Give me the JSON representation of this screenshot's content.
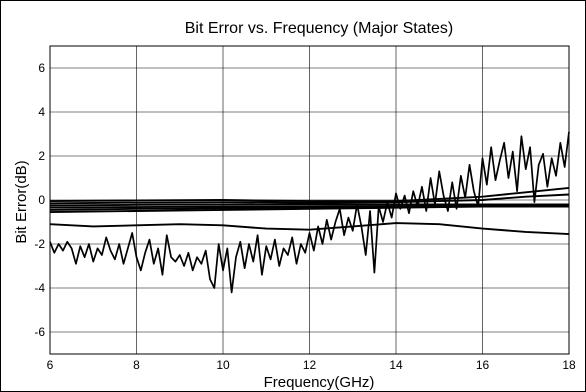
{
  "chart_data": {
    "type": "line",
    "title": "Bit Error vs. Frequency (Major States)",
    "xlabel": "Frequency(GHz)",
    "ylabel": "Bit Error(dB)",
    "xlim": [
      6,
      18
    ],
    "ylim": [
      -7,
      7
    ],
    "xticks": [
      "6",
      "8",
      "10",
      "12",
      "14",
      "16",
      "18"
    ],
    "yticks": [
      "-6",
      "-4",
      "-2",
      "0",
      "2",
      "4",
      "6"
    ],
    "grid": true,
    "legend": "none",
    "series": [
      {
        "values": [
          [
            6,
            -1.1
          ],
          [
            7,
            -1.2
          ],
          [
            8,
            -1.15
          ],
          [
            9,
            -1.1
          ],
          [
            10,
            -1.15
          ],
          [
            11,
            -1.3
          ],
          [
            12,
            -1.35
          ],
          [
            13,
            -1.2
          ],
          [
            14,
            -1.05
          ],
          [
            15,
            -1.1
          ],
          [
            16,
            -1.3
          ],
          [
            17,
            -1.45
          ],
          [
            18,
            -1.55
          ]
        ]
      },
      {
        "values": [
          [
            6,
            -0.05
          ],
          [
            8,
            -0.02
          ],
          [
            10,
            0.0
          ],
          [
            12,
            -0.05
          ],
          [
            14,
            -0.05
          ],
          [
            15,
            0.05
          ],
          [
            16,
            0.15
          ],
          [
            17,
            0.35
          ],
          [
            18,
            0.55
          ]
        ]
      },
      {
        "values": [
          [
            6,
            -0.15
          ],
          [
            8,
            -0.12
          ],
          [
            10,
            -0.1
          ],
          [
            12,
            -0.12
          ],
          [
            14,
            -0.1
          ],
          [
            15,
            -0.05
          ],
          [
            16,
            0.0
          ],
          [
            17,
            0.15
          ],
          [
            18,
            0.25
          ]
        ]
      },
      {
        "values": [
          [
            6,
            -0.25
          ],
          [
            8,
            -0.22
          ],
          [
            10,
            -0.2
          ],
          [
            12,
            -0.2
          ],
          [
            14,
            -0.2
          ],
          [
            16,
            -0.2
          ],
          [
            18,
            -0.2
          ]
        ]
      },
      {
        "values": [
          [
            6,
            -0.35
          ],
          [
            8,
            -0.32
          ],
          [
            10,
            -0.3
          ],
          [
            12,
            -0.3
          ],
          [
            14,
            -0.28
          ],
          [
            16,
            -0.25
          ],
          [
            18,
            -0.2
          ]
        ]
      },
      {
        "values": [
          [
            6,
            -0.45
          ],
          [
            8,
            -0.4
          ],
          [
            10,
            -0.38
          ],
          [
            12,
            -0.35
          ],
          [
            14,
            -0.3
          ],
          [
            16,
            -0.3
          ],
          [
            18,
            -0.25
          ]
        ]
      },
      {
        "values": [
          [
            6,
            -0.55
          ],
          [
            8,
            -0.5
          ],
          [
            10,
            -0.45
          ],
          [
            12,
            -0.4
          ],
          [
            14,
            -0.35
          ],
          [
            16,
            -0.3
          ],
          [
            18,
            -0.3
          ]
        ]
      },
      {
        "values": [
          [
            6.0,
            -1.9
          ],
          [
            6.1,
            -2.4
          ],
          [
            6.2,
            -2.0
          ],
          [
            6.3,
            -2.3
          ],
          [
            6.4,
            -1.9
          ],
          [
            6.5,
            -2.2
          ],
          [
            6.6,
            -2.9
          ],
          [
            6.7,
            -2.1
          ],
          [
            6.8,
            -2.6
          ],
          [
            6.9,
            -2.0
          ],
          [
            7.0,
            -2.8
          ],
          [
            7.1,
            -2.2
          ],
          [
            7.2,
            -2.5
          ],
          [
            7.3,
            -1.7
          ],
          [
            7.4,
            -2.3
          ],
          [
            7.5,
            -2.7
          ],
          [
            7.6,
            -2.0
          ],
          [
            7.7,
            -2.9
          ],
          [
            7.8,
            -2.2
          ],
          [
            7.9,
            -1.5
          ],
          [
            8.0,
            -2.6
          ],
          [
            8.1,
            -3.2
          ],
          [
            8.2,
            -2.4
          ],
          [
            8.3,
            -1.8
          ],
          [
            8.4,
            -2.9
          ],
          [
            8.5,
            -2.2
          ],
          [
            8.6,
            -3.4
          ],
          [
            8.7,
            -1.6
          ],
          [
            8.8,
            -2.6
          ],
          [
            8.9,
            -2.8
          ],
          [
            9.0,
            -2.5
          ],
          [
            9.1,
            -3.0
          ],
          [
            9.2,
            -2.4
          ],
          [
            9.3,
            -3.2
          ],
          [
            9.4,
            -2.6
          ],
          [
            9.5,
            -2.9
          ],
          [
            9.6,
            -2.3
          ],
          [
            9.7,
            -3.6
          ],
          [
            9.8,
            -4.0
          ],
          [
            9.9,
            -2.0
          ],
          [
            10.0,
            -3.2
          ],
          [
            10.1,
            -2.2
          ],
          [
            10.2,
            -4.2
          ],
          [
            10.3,
            -2.6
          ],
          [
            10.4,
            -1.9
          ],
          [
            10.5,
            -3.1
          ],
          [
            10.6,
            -2.0
          ],
          [
            10.7,
            -2.8
          ],
          [
            10.8,
            -1.6
          ],
          [
            10.9,
            -3.4
          ],
          [
            11.0,
            -2.1
          ],
          [
            11.1,
            -2.7
          ],
          [
            11.2,
            -1.8
          ],
          [
            11.3,
            -3.0
          ],
          [
            11.4,
            -2.2
          ],
          [
            11.5,
            -2.5
          ],
          [
            11.6,
            -1.7
          ],
          [
            11.7,
            -2.9
          ],
          [
            11.8,
            -2.0
          ],
          [
            11.9,
            -2.4
          ],
          [
            12.0,
            -1.5
          ],
          [
            12.1,
            -2.3
          ],
          [
            12.2,
            -1.2
          ],
          [
            12.3,
            -2.0
          ],
          [
            12.4,
            -0.9
          ],
          [
            12.5,
            -1.8
          ],
          [
            12.6,
            -1.0
          ],
          [
            12.7,
            -0.4
          ],
          [
            12.8,
            -1.6
          ],
          [
            12.9,
            -0.8
          ],
          [
            13.0,
            -1.4
          ],
          [
            13.1,
            -0.2
          ],
          [
            13.2,
            -1.2
          ],
          [
            13.3,
            -2.5
          ],
          [
            13.4,
            -0.5
          ],
          [
            13.5,
            -3.3
          ],
          [
            13.6,
            -0.3
          ],
          [
            13.7,
            -1.0
          ],
          [
            13.8,
            -0.1
          ],
          [
            13.9,
            -0.8
          ],
          [
            14.0,
            0.3
          ],
          [
            14.1,
            -0.4
          ],
          [
            14.2,
            0.2
          ],
          [
            14.3,
            -0.6
          ],
          [
            14.4,
            0.4
          ],
          [
            14.5,
            -0.3
          ],
          [
            14.6,
            0.6
          ],
          [
            14.7,
            -0.5
          ],
          [
            14.8,
            1.0
          ],
          [
            14.9,
            -0.2
          ],
          [
            15.0,
            1.3
          ],
          [
            15.1,
            0.2
          ],
          [
            15.2,
            -0.5
          ],
          [
            15.3,
            0.8
          ],
          [
            15.4,
            -0.4
          ],
          [
            15.5,
            1.1
          ],
          [
            15.6,
            0.1
          ],
          [
            15.7,
            1.6
          ],
          [
            15.8,
            0.4
          ],
          [
            15.9,
            -0.3
          ],
          [
            16.0,
            1.9
          ],
          [
            16.1,
            0.7
          ],
          [
            16.2,
            2.4
          ],
          [
            16.3,
            0.9
          ],
          [
            16.4,
            1.8
          ],
          [
            16.5,
            2.6
          ],
          [
            16.6,
            1.0
          ],
          [
            16.7,
            2.2
          ],
          [
            16.8,
            0.4
          ],
          [
            16.9,
            2.9
          ],
          [
            17.0,
            1.4
          ],
          [
            17.1,
            2.4
          ],
          [
            17.2,
            -0.1
          ],
          [
            17.3,
            1.6
          ],
          [
            17.4,
            2.1
          ],
          [
            17.5,
            0.6
          ],
          [
            17.6,
            1.9
          ],
          [
            17.7,
            1.1
          ],
          [
            17.8,
            2.6
          ],
          [
            17.9,
            1.5
          ],
          [
            18.0,
            3.1
          ]
        ]
      }
    ]
  }
}
